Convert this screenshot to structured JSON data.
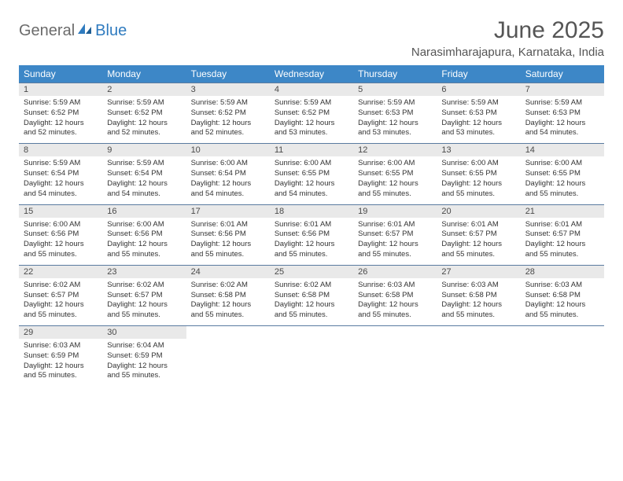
{
  "header": {
    "logo_general": "General",
    "logo_blue": "Blue",
    "month_title": "June 2025",
    "location": "Narasimharajapura, Karnataka, India"
  },
  "colors": {
    "header_bg": "#3d87c7",
    "header_text": "#ffffff",
    "daynum_bg": "#e9e9e9",
    "rule": "#5a7ba0",
    "logo_gray": "#6b6b6b",
    "logo_blue": "#2f7bbf",
    "title_gray": "#555555",
    "body_text": "#333333",
    "page_bg": "#ffffff"
  },
  "day_names": [
    "Sunday",
    "Monday",
    "Tuesday",
    "Wednesday",
    "Thursday",
    "Friday",
    "Saturday"
  ],
  "weeks": [
    [
      {
        "n": "1",
        "sr": "5:59 AM",
        "ss": "6:52 PM",
        "dl": "12 hours and 52 minutes."
      },
      {
        "n": "2",
        "sr": "5:59 AM",
        "ss": "6:52 PM",
        "dl": "12 hours and 52 minutes."
      },
      {
        "n": "3",
        "sr": "5:59 AM",
        "ss": "6:52 PM",
        "dl": "12 hours and 52 minutes."
      },
      {
        "n": "4",
        "sr": "5:59 AM",
        "ss": "6:52 PM",
        "dl": "12 hours and 53 minutes."
      },
      {
        "n": "5",
        "sr": "5:59 AM",
        "ss": "6:53 PM",
        "dl": "12 hours and 53 minutes."
      },
      {
        "n": "6",
        "sr": "5:59 AM",
        "ss": "6:53 PM",
        "dl": "12 hours and 53 minutes."
      },
      {
        "n": "7",
        "sr": "5:59 AM",
        "ss": "6:53 PM",
        "dl": "12 hours and 54 minutes."
      }
    ],
    [
      {
        "n": "8",
        "sr": "5:59 AM",
        "ss": "6:54 PM",
        "dl": "12 hours and 54 minutes."
      },
      {
        "n": "9",
        "sr": "5:59 AM",
        "ss": "6:54 PM",
        "dl": "12 hours and 54 minutes."
      },
      {
        "n": "10",
        "sr": "6:00 AM",
        "ss": "6:54 PM",
        "dl": "12 hours and 54 minutes."
      },
      {
        "n": "11",
        "sr": "6:00 AM",
        "ss": "6:55 PM",
        "dl": "12 hours and 54 minutes."
      },
      {
        "n": "12",
        "sr": "6:00 AM",
        "ss": "6:55 PM",
        "dl": "12 hours and 55 minutes."
      },
      {
        "n": "13",
        "sr": "6:00 AM",
        "ss": "6:55 PM",
        "dl": "12 hours and 55 minutes."
      },
      {
        "n": "14",
        "sr": "6:00 AM",
        "ss": "6:55 PM",
        "dl": "12 hours and 55 minutes."
      }
    ],
    [
      {
        "n": "15",
        "sr": "6:00 AM",
        "ss": "6:56 PM",
        "dl": "12 hours and 55 minutes."
      },
      {
        "n": "16",
        "sr": "6:00 AM",
        "ss": "6:56 PM",
        "dl": "12 hours and 55 minutes."
      },
      {
        "n": "17",
        "sr": "6:01 AM",
        "ss": "6:56 PM",
        "dl": "12 hours and 55 minutes."
      },
      {
        "n": "18",
        "sr": "6:01 AM",
        "ss": "6:56 PM",
        "dl": "12 hours and 55 minutes."
      },
      {
        "n": "19",
        "sr": "6:01 AM",
        "ss": "6:57 PM",
        "dl": "12 hours and 55 minutes."
      },
      {
        "n": "20",
        "sr": "6:01 AM",
        "ss": "6:57 PM",
        "dl": "12 hours and 55 minutes."
      },
      {
        "n": "21",
        "sr": "6:01 AM",
        "ss": "6:57 PM",
        "dl": "12 hours and 55 minutes."
      }
    ],
    [
      {
        "n": "22",
        "sr": "6:02 AM",
        "ss": "6:57 PM",
        "dl": "12 hours and 55 minutes."
      },
      {
        "n": "23",
        "sr": "6:02 AM",
        "ss": "6:57 PM",
        "dl": "12 hours and 55 minutes."
      },
      {
        "n": "24",
        "sr": "6:02 AM",
        "ss": "6:58 PM",
        "dl": "12 hours and 55 minutes."
      },
      {
        "n": "25",
        "sr": "6:02 AM",
        "ss": "6:58 PM",
        "dl": "12 hours and 55 minutes."
      },
      {
        "n": "26",
        "sr": "6:03 AM",
        "ss": "6:58 PM",
        "dl": "12 hours and 55 minutes."
      },
      {
        "n": "27",
        "sr": "6:03 AM",
        "ss": "6:58 PM",
        "dl": "12 hours and 55 minutes."
      },
      {
        "n": "28",
        "sr": "6:03 AM",
        "ss": "6:58 PM",
        "dl": "12 hours and 55 minutes."
      }
    ],
    [
      {
        "n": "29",
        "sr": "6:03 AM",
        "ss": "6:59 PM",
        "dl": "12 hours and 55 minutes."
      },
      {
        "n": "30",
        "sr": "6:04 AM",
        "ss": "6:59 PM",
        "dl": "12 hours and 55 minutes."
      },
      null,
      null,
      null,
      null,
      null
    ]
  ],
  "labels": {
    "sunrise": "Sunrise:",
    "sunset": "Sunset:",
    "daylight": "Daylight:"
  }
}
